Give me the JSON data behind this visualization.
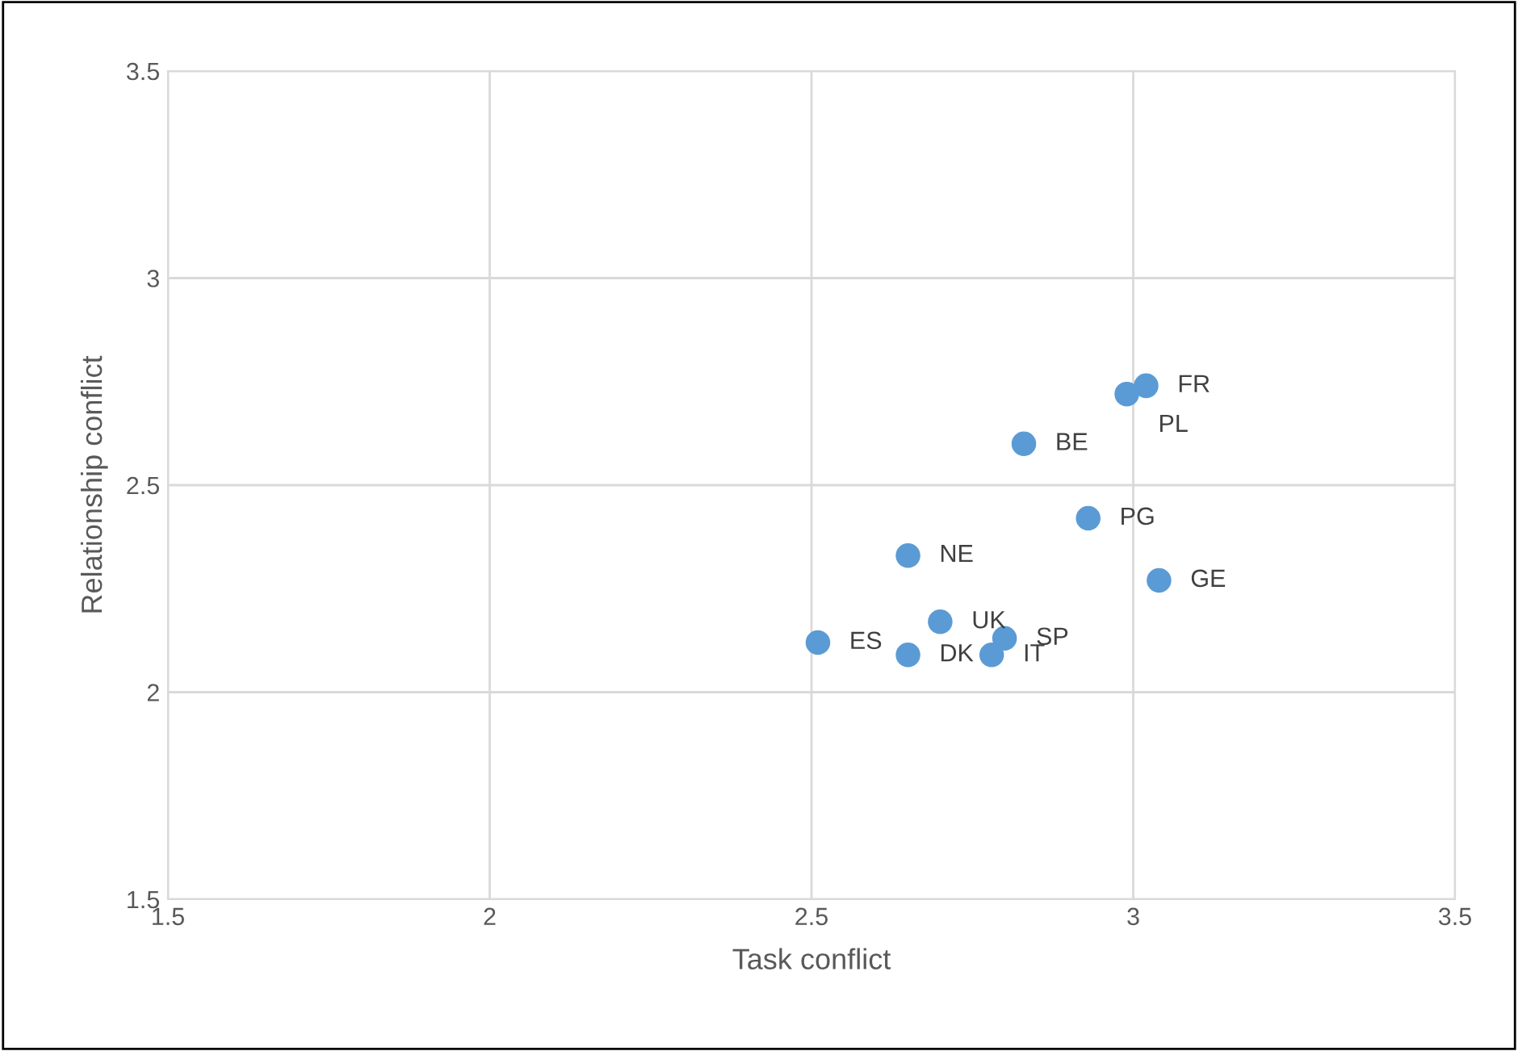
{
  "chart_data": {
    "type": "scatter",
    "xlabel": "Task conflict",
    "ylabel": "Relationship conflict",
    "x": [
      3.02,
      2.99,
      2.83,
      2.93,
      2.65,
      3.04,
      2.7,
      2.8,
      2.51,
      2.65,
      2.78
    ],
    "series": [
      {
        "color": "#5b9bd5",
        "values": [
          2.74,
          2.72,
          2.6,
          2.42,
          2.33,
          2.27,
          2.17,
          2.13,
          2.12,
          2.09,
          2.09
        ],
        "value_labels": [
          "FR",
          "PL",
          "BE",
          "PG",
          "NE",
          "GE",
          "UK",
          "SP",
          "ES",
          "DK",
          "IT"
        ]
      }
    ],
    "xlim": [
      1.5,
      3.5
    ],
    "xticks": [
      1.5,
      2,
      2.5,
      3,
      3.5
    ],
    "ylim": [
      1.5,
      3.5
    ],
    "yticks": [
      1.5,
      2,
      2.5,
      3,
      3.5
    ],
    "grid": true,
    "marker": "circle"
  }
}
